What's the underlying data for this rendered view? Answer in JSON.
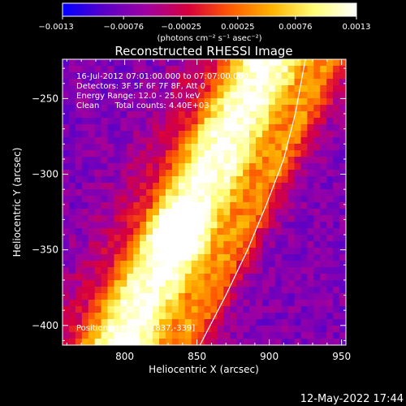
{
  "chart_data": {
    "type": "heatmap",
    "title": "Reconstructed RHESSI Image",
    "xlabel": "Heliocentric X (arcsec)",
    "ylabel": "Heliocentric Y (arcsec)",
    "xlim": [
      757,
      953
    ],
    "ylim": [
      -413,
      -224
    ],
    "x_ticks": [
      {
        "value": 800,
        "label": "800"
      },
      {
        "value": 850,
        "label": "850"
      },
      {
        "value": 900,
        "label": "900"
      },
      {
        "value": 950,
        "label": "950"
      }
    ],
    "y_ticks": [
      {
        "value": -250,
        "label": "−250"
      },
      {
        "value": -300,
        "label": "−300"
      },
      {
        "value": -350,
        "label": "−350"
      },
      {
        "value": -400,
        "label": "−400"
      }
    ],
    "colorbar": {
      "min": -0.0013,
      "max": 0.0013,
      "ticks": [
        {
          "value": -0.0013,
          "label": "−0.0013"
        },
        {
          "value": -0.00076,
          "label": "−0.00076"
        },
        {
          "value": -0.00025,
          "label": "−0.00025"
        },
        {
          "value": 0.00025,
          "label": "0.00025"
        },
        {
          "value": 0.00076,
          "label": "0.00076"
        },
        {
          "value": 0.0013,
          "label": "0.0013"
        }
      ],
      "unit_label": "(photons cm⁻² s⁻¹ asec⁻²)",
      "colors": [
        "#0000ff",
        "#5a00c8",
        "#a000a0",
        "#d8003c",
        "#ff5a00",
        "#ffb400",
        "#ffff78",
        "#ffffff"
      ]
    },
    "info_lines": [
      "16-Jul-2012 07:01:00.000 to 07:07:00.000",
      "Detectors: 3F 5F 6F 7F 8F, Att 0",
      "Energy Range: 12.0 - 25.0 keV",
      "Clean      Total counts: 4.40E+03"
    ],
    "peak_label": "Position of Peak = [837,-339]",
    "peak": {
      "x": 837,
      "y": -339
    },
    "limb_curve": [
      [
        852,
        -413
      ],
      [
        870,
        -380
      ],
      [
        885,
        -350
      ],
      [
        898,
        -320
      ],
      [
        910,
        -290
      ],
      [
        918,
        -260
      ],
      [
        925,
        -224
      ]
    ]
  },
  "footer": {
    "date": "12-May-2022 17:44"
  }
}
